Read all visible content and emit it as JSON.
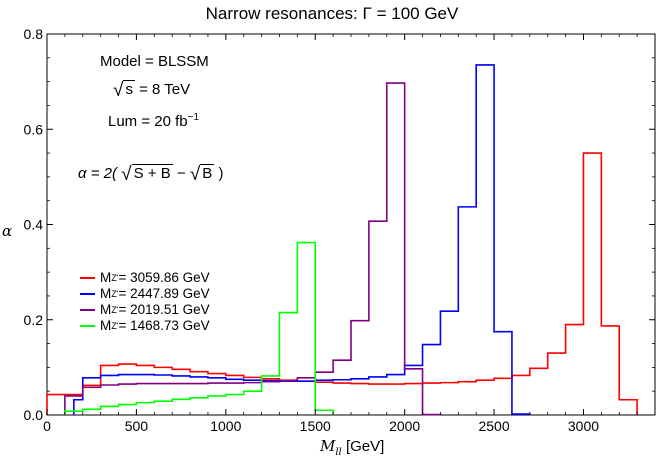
{
  "chart_data": {
    "type": "line",
    "title": "Narrow resonances: Γ = 100 GeV",
    "xlabel_var": "M",
    "xlabel_sub": "ll",
    "xlabel_unit": "[GeV]",
    "ylabel": "α",
    "xlim": [
      0,
      3400
    ],
    "ylim": [
      0,
      0.8
    ],
    "xticks": [
      0,
      500,
      1000,
      1500,
      2000,
      2500,
      3000
    ],
    "yticks": [
      0.0,
      0.2,
      0.4,
      0.6,
      0.8
    ],
    "ytick_labels": [
      "0.0",
      "0.2",
      "0.4",
      "0.6",
      "0.8"
    ],
    "grid": false,
    "legend_position": "left-middle",
    "annotations": {
      "model": "Model = BLSSM",
      "sqrt_s_arg": "s",
      "sqrt_s_rest": " = 8 TeV",
      "lum_main": "Lum = 20 fb",
      "lum_exp": "−1",
      "alpha_lhs": "α = 2(",
      "alpha_arg1": "S + B",
      "alpha_mid": " − ",
      "alpha_arg2": "B",
      "alpha_rhs": ")"
    },
    "series": [
      {
        "name_main": "M",
        "name_sub": "Z'",
        "name_rest": " = 3059.86 GeV",
        "color": "#ff0000",
        "edges": [
          0,
          200,
          300,
          400,
          500,
          600,
          700,
          800,
          900,
          1000,
          1100,
          1200,
          1300,
          1400,
          1500,
          1600,
          1700,
          1800,
          1900,
          2000,
          2100,
          2200,
          2300,
          2400,
          2500,
          2600,
          2700,
          2800,
          2900,
          3000,
          3100,
          3200,
          3300
        ],
        "values": [
          0.043,
          0.062,
          0.104,
          0.107,
          0.104,
          0.1,
          0.096,
          0.091,
          0.087,
          0.083,
          0.079,
          0.076,
          0.073,
          0.071,
          0.069,
          0.067,
          0.066,
          0.065,
          0.065,
          0.066,
          0.067,
          0.068,
          0.07,
          0.073,
          0.077,
          0.083,
          0.098,
          0.13,
          0.19,
          0.55,
          0.187,
          0.032
        ]
      },
      {
        "name_main": "M",
        "name_sub": "Z'",
        "name_rest": " = 2447.89 GeV",
        "color": "#0000ff",
        "edges": [
          150,
          200,
          300,
          400,
          500,
          600,
          700,
          800,
          900,
          1000,
          1100,
          1200,
          1300,
          1400,
          1500,
          1600,
          1700,
          1800,
          1900,
          2000,
          2100,
          2200,
          2300,
          2400,
          2500,
          2600,
          2700
        ],
        "values": [
          0.032,
          0.078,
          0.083,
          0.085,
          0.085,
          0.084,
          0.082,
          0.08,
          0.078,
          0.075,
          0.073,
          0.072,
          0.071,
          0.071,
          0.073,
          0.074,
          0.076,
          0.08,
          0.085,
          0.104,
          0.148,
          0.218,
          0.437,
          0.735,
          0.175,
          0.002
        ]
      },
      {
        "name_main": "M",
        "name_sub": "Z'",
        "name_rest": " = 2019.51 GeV",
        "color": "#800080",
        "edges": [
          100,
          200,
          300,
          400,
          500,
          600,
          700,
          800,
          900,
          1000,
          1100,
          1200,
          1300,
          1400,
          1500,
          1600,
          1700,
          1800,
          1900,
          2000,
          2100,
          2200
        ],
        "values": [
          0.04,
          0.058,
          0.063,
          0.065,
          0.066,
          0.066,
          0.066,
          0.066,
          0.067,
          0.067,
          0.068,
          0.07,
          0.072,
          0.078,
          0.09,
          0.115,
          0.198,
          0.407,
          0.697,
          0.097,
          0.001
        ]
      },
      {
        "name_main": "M",
        "name_sub": "Z'",
        "name_rest": " = 1468.73 GeV",
        "color": "#00ff00",
        "edges": [
          100,
          200,
          300,
          400,
          500,
          600,
          700,
          800,
          900,
          1000,
          1100,
          1200,
          1300,
          1400,
          1500,
          1600
        ],
        "values": [
          0.008,
          0.012,
          0.018,
          0.022,
          0.026,
          0.029,
          0.033,
          0.036,
          0.04,
          0.043,
          0.05,
          0.082,
          0.215,
          0.362,
          0.01
        ]
      }
    ]
  }
}
